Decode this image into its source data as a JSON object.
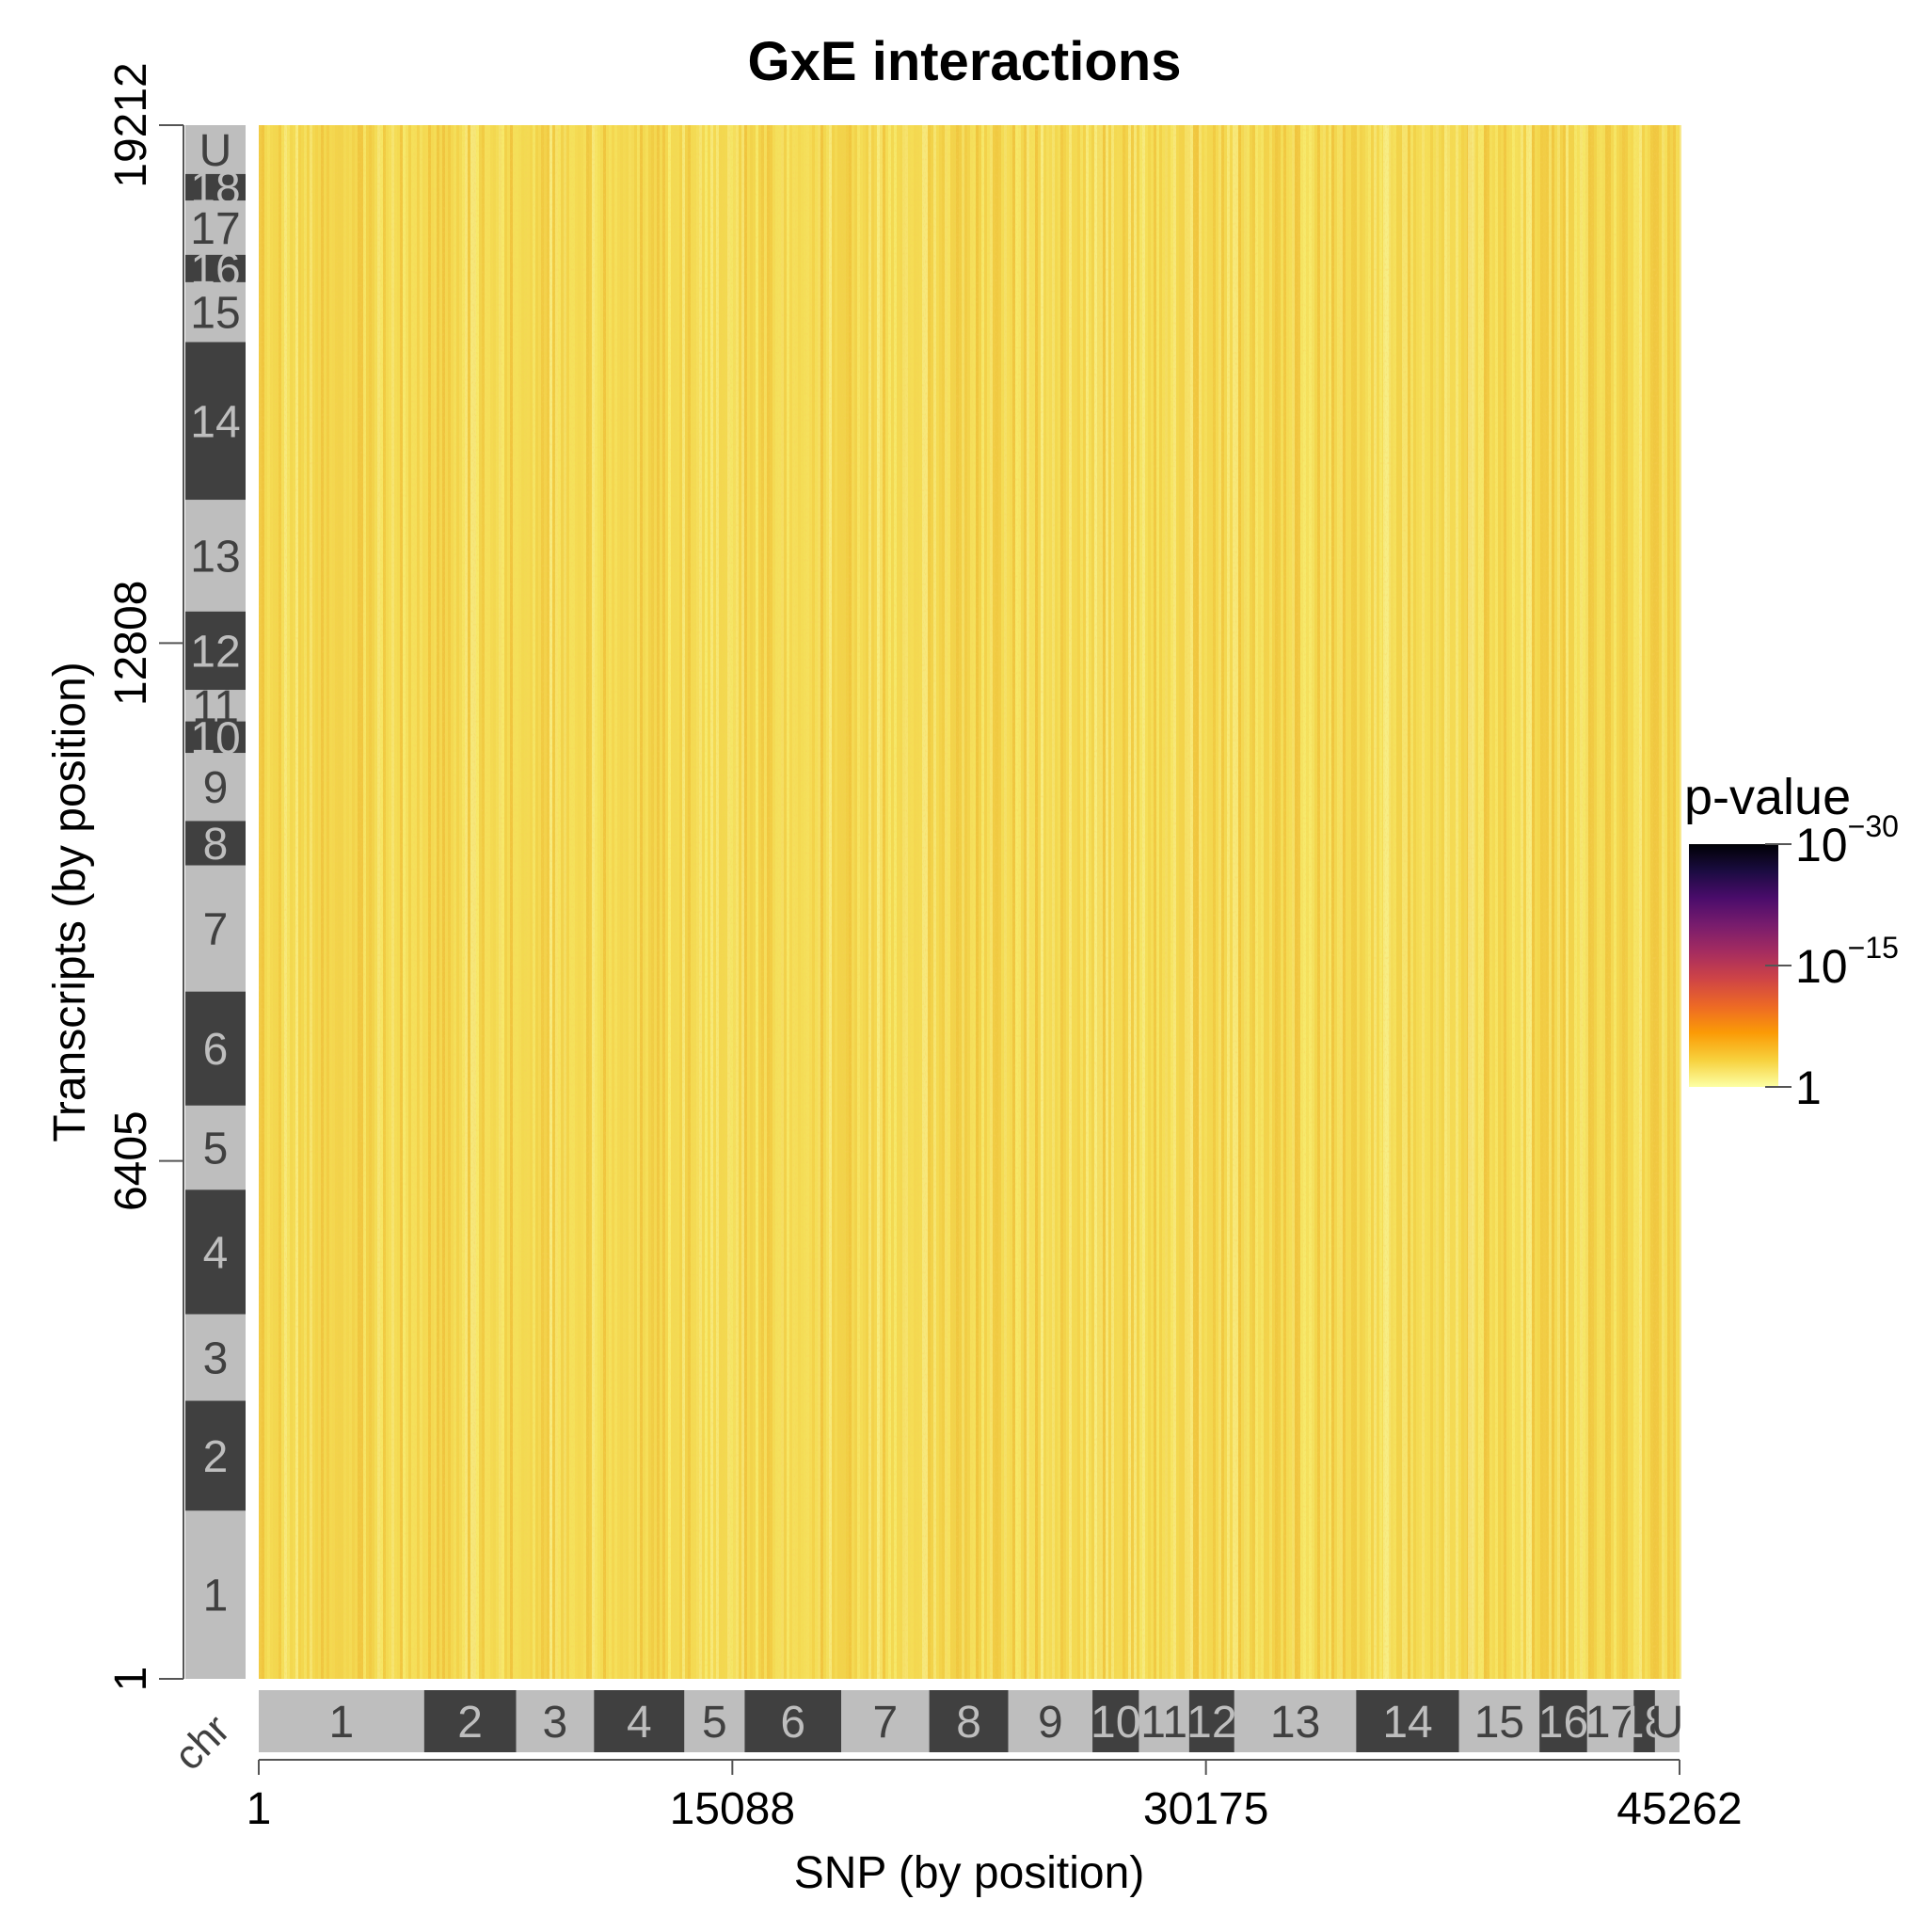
{
  "chart_data": {
    "type": "heatmap",
    "title": "GxE interactions",
    "xlabel": "SNP (by position)",
    "ylabel": "Transcripts (by position)",
    "x_range": [
      1,
      45262
    ],
    "y_range": [
      1,
      19212
    ],
    "x_ticks": [
      1,
      15088,
      30175,
      45262
    ],
    "y_ticks": [
      1,
      6405,
      12808,
      19212
    ],
    "x_tick_labels": [
      "1",
      "15088",
      "30175",
      "45262"
    ],
    "y_tick_labels": [
      "1",
      "6405",
      "12808",
      "19212"
    ],
    "chr_axis_label": "chr",
    "colors": {
      "chr_dark": "#404040",
      "chr_light": "#bebebe",
      "chr_label_on_dark": "#bebebe",
      "chr_label_on_light": "#404040",
      "heat_low": "#f7ee73",
      "heat_mid": "#f2c02b",
      "heat_high": "#e59a1a"
    },
    "x_chromosomes": [
      {
        "label": "1",
        "start": 1,
        "end": 5270,
        "shade": "light"
      },
      {
        "label": "2",
        "start": 5270,
        "end": 8200,
        "shade": "dark"
      },
      {
        "label": "3",
        "start": 8200,
        "end": 10680,
        "shade": "light"
      },
      {
        "label": "4",
        "start": 10680,
        "end": 13560,
        "shade": "dark"
      },
      {
        "label": "5",
        "start": 13560,
        "end": 15480,
        "shade": "light"
      },
      {
        "label": "6",
        "start": 15480,
        "end": 18560,
        "shade": "dark"
      },
      {
        "label": "7",
        "start": 18560,
        "end": 21360,
        "shade": "light"
      },
      {
        "label": "8",
        "start": 21360,
        "end": 23880,
        "shade": "dark"
      },
      {
        "label": "9",
        "start": 23880,
        "end": 26560,
        "shade": "light"
      },
      {
        "label": "10",
        "start": 26560,
        "end": 28040,
        "shade": "dark"
      },
      {
        "label": "11",
        "start": 28040,
        "end": 29640,
        "shade": "light"
      },
      {
        "label": "12",
        "start": 29640,
        "end": 31080,
        "shade": "dark"
      },
      {
        "label": "13",
        "start": 31080,
        "end": 34960,
        "shade": "light"
      },
      {
        "label": "14",
        "start": 34960,
        "end": 38240,
        "shade": "dark"
      },
      {
        "label": "15",
        "start": 38240,
        "end": 40800,
        "shade": "light"
      },
      {
        "label": "16",
        "start": 40800,
        "end": 42320,
        "shade": "dark"
      },
      {
        "label": "17",
        "start": 42320,
        "end": 43800,
        "shade": "light"
      },
      {
        "label": "18",
        "start": 43800,
        "end": 44480,
        "shade": "dark"
      },
      {
        "label": "U",
        "start": 44480,
        "end": 45262,
        "shade": "light"
      }
    ],
    "y_chromosomes": [
      {
        "label": "1",
        "start": 1,
        "end": 2080,
        "shade": "light"
      },
      {
        "label": "2",
        "start": 2080,
        "end": 3440,
        "shade": "dark"
      },
      {
        "label": "3",
        "start": 3440,
        "end": 4510,
        "shade": "light"
      },
      {
        "label": "4",
        "start": 4510,
        "end": 6050,
        "shade": "dark"
      },
      {
        "label": "5",
        "start": 6050,
        "end": 7090,
        "shade": "light"
      },
      {
        "label": "6",
        "start": 7090,
        "end": 8500,
        "shade": "dark"
      },
      {
        "label": "7",
        "start": 8500,
        "end": 10060,
        "shade": "light"
      },
      {
        "label": "8",
        "start": 10060,
        "end": 10610,
        "shade": "dark"
      },
      {
        "label": "9",
        "start": 10610,
        "end": 11450,
        "shade": "light"
      },
      {
        "label": "10",
        "start": 11450,
        "end": 11840,
        "shade": "dark"
      },
      {
        "label": "11",
        "start": 11840,
        "end": 12230,
        "shade": "light"
      },
      {
        "label": "12",
        "start": 12230,
        "end": 13200,
        "shade": "dark"
      },
      {
        "label": "13",
        "start": 13200,
        "end": 14580,
        "shade": "light"
      },
      {
        "label": "14",
        "start": 14580,
        "end": 16530,
        "shade": "dark"
      },
      {
        "label": "15",
        "start": 16530,
        "end": 17270,
        "shade": "light"
      },
      {
        "label": "16",
        "start": 17270,
        "end": 17610,
        "shade": "dark"
      },
      {
        "label": "17",
        "start": 17610,
        "end": 18280,
        "shade": "light"
      },
      {
        "label": "18",
        "start": 18280,
        "end": 18610,
        "shade": "dark"
      },
      {
        "label": "U",
        "start": 18610,
        "end": 19212,
        "shade": "light"
      }
    ],
    "legend": {
      "title": "p-value",
      "placement": "right",
      "scale": "log",
      "ticks": [
        {
          "base": "10",
          "exp": "−30"
        },
        {
          "base": "10",
          "exp": "−15"
        },
        {
          "base": "1",
          "exp": ""
        }
      ],
      "gradient": [
        "#000004",
        "#1b0c41",
        "#4a0c6b",
        "#781c6d",
        "#a52c60",
        "#cf4446",
        "#ed6925",
        "#fb9b06",
        "#f7d13d",
        "#fcffa4"
      ]
    },
    "note_values": "All SNP x transcript interaction p-values are weak (close to 1); heatmap appears uniformly yellow with faint vertical striping."
  }
}
